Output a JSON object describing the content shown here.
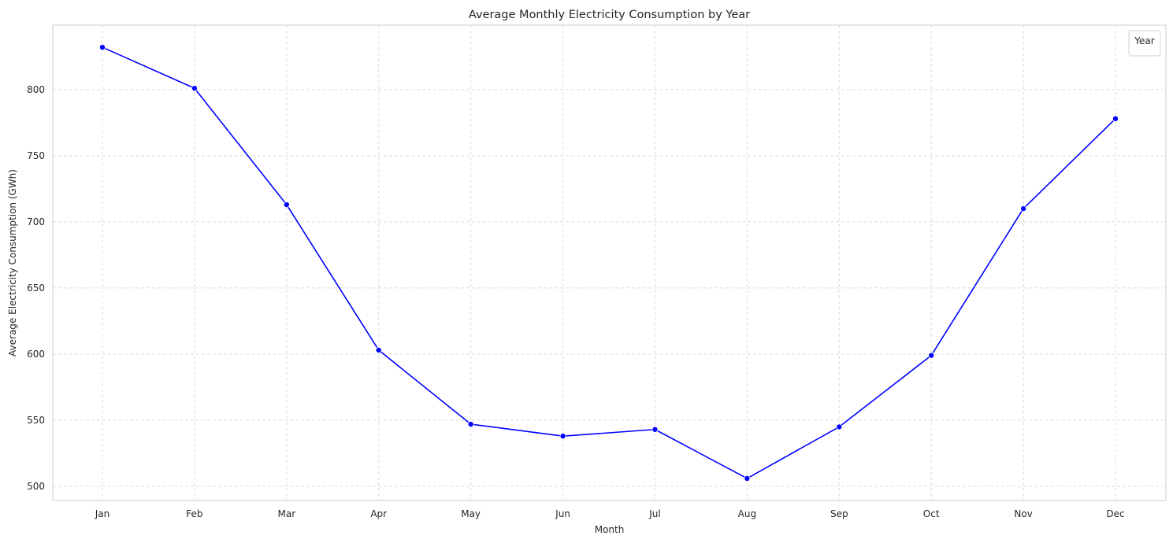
{
  "chart_data": {
    "type": "line",
    "title": "Average Monthly Electricity Consumption by Year",
    "xlabel": "Month",
    "ylabel": "Average Electricity Consumption (GWh)",
    "categories": [
      "Jan",
      "Feb",
      "Mar",
      "Apr",
      "May",
      "Jun",
      "Jul",
      "Aug",
      "Sep",
      "Oct",
      "Nov",
      "Dec"
    ],
    "series": [
      {
        "values": [
          832,
          801,
          713,
          603,
          547,
          538,
          543,
          506,
          545,
          599,
          710,
          778
        ],
        "color": "#0000ff",
        "marker": "circle"
      }
    ],
    "yticks": [
      500,
      550,
      600,
      650,
      700,
      750,
      800
    ],
    "ylim": [
      489.3,
      848.7
    ],
    "grid": true,
    "grid_style": "dashed",
    "legend": {
      "title": "Year",
      "position": "top-right",
      "entries": []
    }
  }
}
